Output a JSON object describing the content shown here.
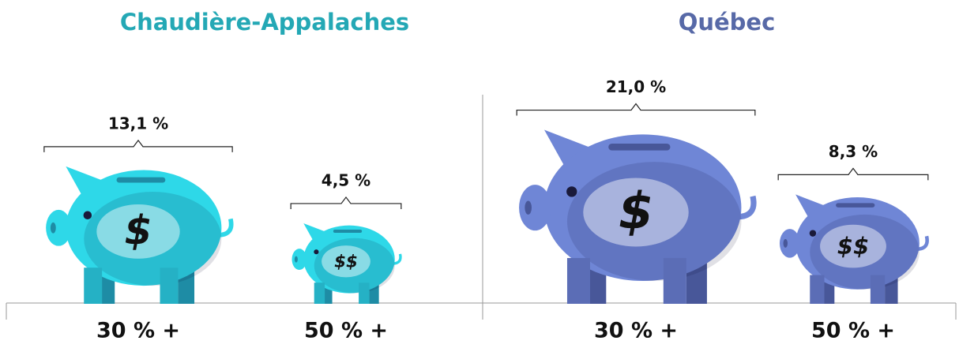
{
  "chart_data": [
    {
      "type": "pictogram",
      "title": "Chaudière-Appalaches",
      "color": "#2ed8e8",
      "categories": [
        "30 % +",
        "50 % +"
      ],
      "values": [
        13.1,
        4.5
      ],
      "value_labels": [
        "13,1 %",
        "4,5 %"
      ],
      "icon_labels": [
        "$",
        "$$"
      ]
    },
    {
      "type": "pictogram",
      "title": "Québec",
      "color": "#6f86d6",
      "categories": [
        "30 % +",
        "50 % +"
      ],
      "values": [
        21.0,
        8.3
      ],
      "value_labels": [
        "21,0 %",
        "8,3 %"
      ],
      "icon_labels": [
        "$",
        "$$"
      ]
    }
  ]
}
